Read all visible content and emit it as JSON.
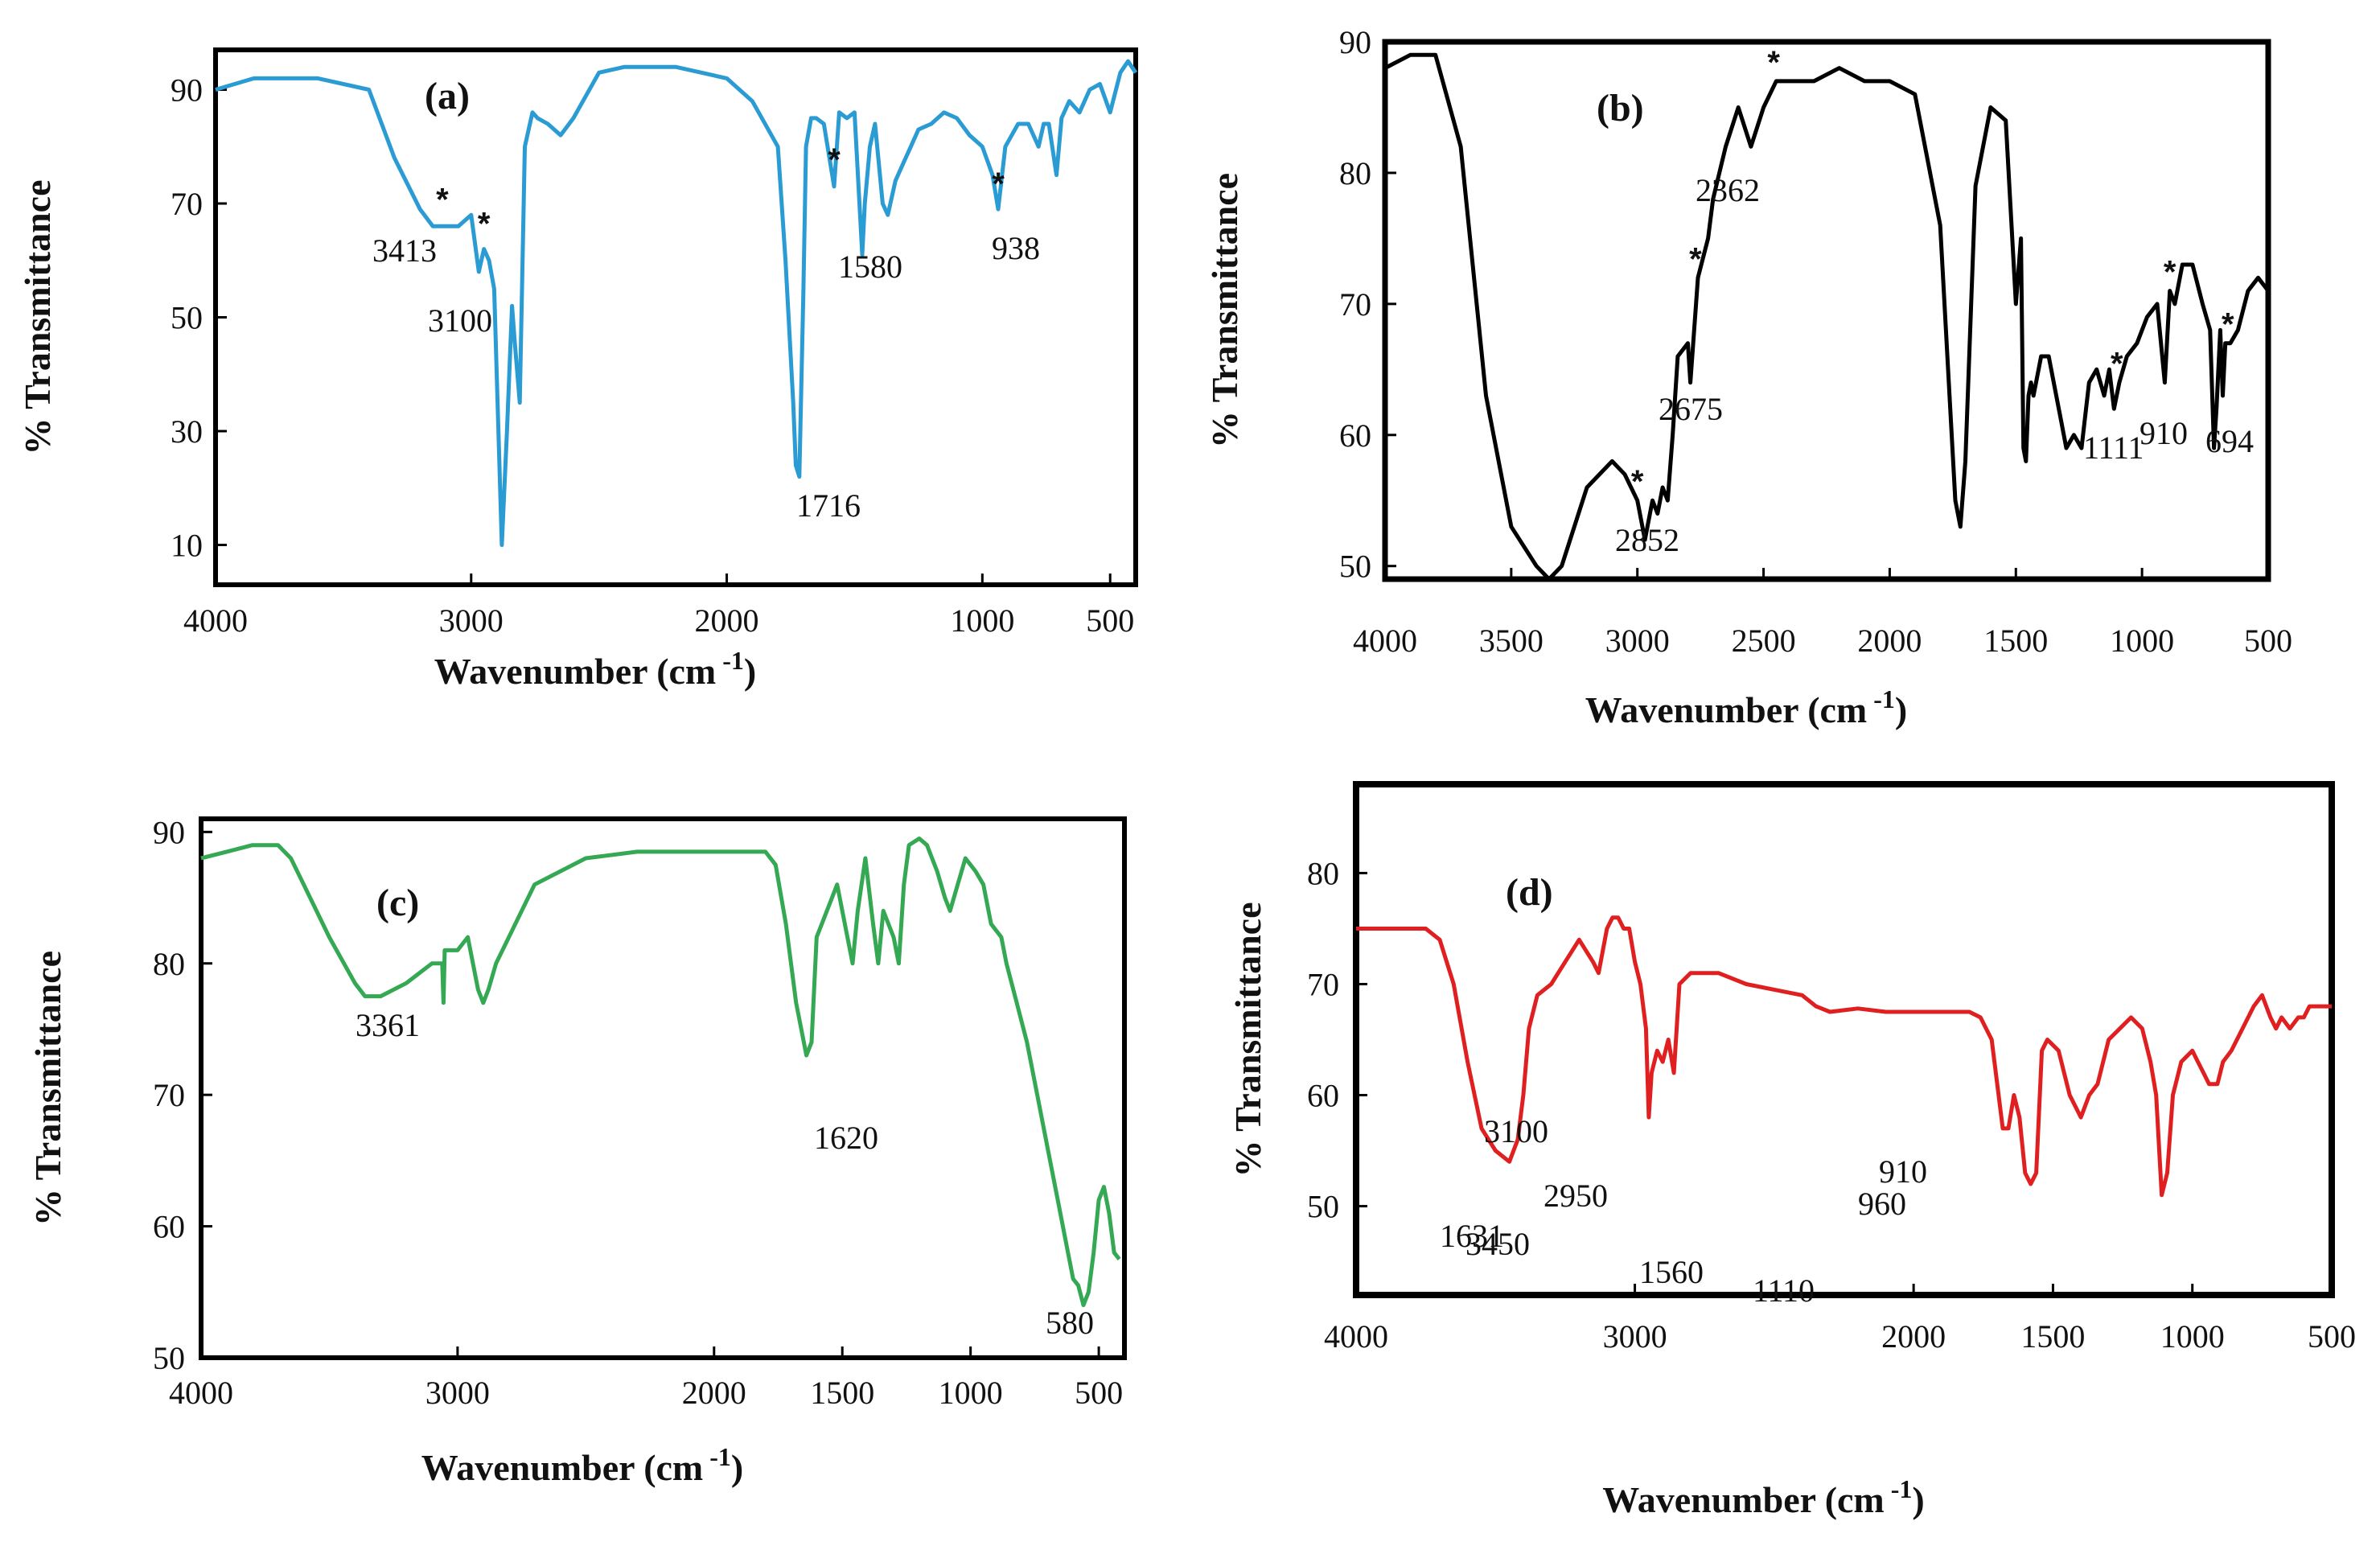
{
  "chart_data": [
    {
      "panel": "(a)",
      "type": "line",
      "color": "#2b9bd4",
      "xlabel": "Wavenumber (cm",
      "xlabel_sup": "-1",
      "xlabel_close": ")",
      "ylabel": "% Transmittance",
      "xlim": [
        4000,
        400
      ],
      "ylim": [
        3,
        97
      ],
      "xticks": [
        4000,
        3000,
        2000,
        1000,
        500
      ],
      "yticks": [
        10,
        30,
        50,
        70,
        90
      ],
      "annotations": [
        "3413",
        "3100",
        "1716",
        "1580",
        "938"
      ],
      "stars": [
        3113,
        2950,
        1580,
        938
      ],
      "series": [
        {
          "x": [
            4000,
            3850,
            3600,
            3400,
            3300,
            3200,
            3150,
            3050,
            3000,
            2970,
            2950,
            2930,
            2910,
            2880,
            2860,
            2840,
            2830,
            2810,
            2790,
            2760,
            2740,
            2700,
            2650,
            2600,
            2500,
            2400,
            2200,
            2000,
            1900,
            1800,
            1770,
            1740,
            1730,
            1716,
            1700,
            1690,
            1670,
            1650,
            1620,
            1580,
            1560,
            1530,
            1500,
            1470,
            1460,
            1440,
            1420,
            1390,
            1370,
            1340,
            1300,
            1280,
            1250,
            1200,
            1150,
            1100,
            1050,
            1000,
            960,
            938,
            910,
            860,
            820,
            780,
            760,
            740,
            710,
            690,
            660,
            620,
            580,
            540,
            500,
            460,
            430,
            400
          ],
          "y": [
            90,
            92,
            92,
            90,
            78,
            69,
            66,
            66,
            68,
            58,
            62,
            60,
            55,
            10,
            30,
            52,
            46,
            35,
            80,
            86,
            85,
            84,
            82,
            85,
            93,
            94,
            94,
            92,
            88,
            80,
            60,
            35,
            24,
            22,
            55,
            80,
            85,
            85,
            84,
            73,
            86,
            85,
            86,
            61,
            70,
            80,
            84,
            70,
            68,
            74,
            78,
            80,
            83,
            84,
            86,
            85,
            82,
            80,
            75,
            69,
            80,
            84,
            84,
            80,
            84,
            84,
            75,
            85,
            88,
            86,
            90,
            91,
            86,
            93,
            95,
            93
          ]
        }
      ]
    },
    {
      "panel": "(b)",
      "type": "line",
      "color": "#000000",
      "xlabel": "Wavenumber (cm",
      "xlabel_sup": "-1",
      "xlabel_close": ")",
      "ylabel": "% Transmittance",
      "xlim": [
        4000,
        500
      ],
      "ylim": [
        49,
        90
      ],
      "xticks": [
        4000,
        3500,
        3000,
        2500,
        2000,
        1500,
        1000,
        500
      ],
      "yticks": [
        50,
        60,
        70,
        80,
        90
      ],
      "annotations": [
        "2362",
        "2675",
        "2852",
        "1111",
        "910",
        "694"
      ],
      "stars": [
        3000,
        2770,
        2460,
        1100,
        890,
        660
      ],
      "series": [
        {
          "x": [
            4000,
            3900,
            3800,
            3700,
            3600,
            3500,
            3400,
            3350,
            3300,
            3200,
            3100,
            3050,
            3000,
            2970,
            2940,
            2920,
            2900,
            2880,
            2860,
            2840,
            2800,
            2790,
            2760,
            2720,
            2700,
            2650,
            2600,
            2550,
            2500,
            2450,
            2400,
            2350,
            2300,
            2200,
            2100,
            2000,
            1900,
            1800,
            1760,
            1740,
            1720,
            1700,
            1660,
            1600,
            1540,
            1500,
            1480,
            1470,
            1460,
            1450,
            1440,
            1430,
            1400,
            1370,
            1340,
            1320,
            1300,
            1270,
            1240,
            1210,
            1180,
            1150,
            1130,
            1111,
            1090,
            1060,
            1020,
            980,
            940,
            910,
            890,
            870,
            840,
            800,
            760,
            730,
            715,
            705,
            690,
            680,
            670,
            650,
            620,
            580,
            540,
            500
          ],
          "y": [
            88,
            89,
            89,
            82,
            63,
            53,
            50,
            49,
            50,
            56,
            58,
            57,
            55,
            52,
            55,
            54,
            56,
            55,
            60,
            66,
            67,
            64,
            72,
            75,
            78,
            82,
            85,
            82,
            85,
            87,
            87,
            87,
            87,
            88,
            87,
            87,
            86,
            76,
            62,
            55,
            53,
            58,
            79,
            85,
            84,
            70,
            75,
            59,
            58,
            63,
            64,
            63,
            66,
            66,
            63,
            61,
            59,
            60,
            59,
            64,
            65,
            63,
            65,
            62,
            64,
            66,
            67,
            69,
            70,
            64,
            71,
            70,
            73,
            73,
            70,
            68,
            59,
            62,
            68,
            63,
            67,
            67,
            68,
            71,
            72,
            71
          ]
        }
      ]
    },
    {
      "panel": "(c)",
      "type": "line",
      "color": "#34a853",
      "xlabel": "Wavenumber (cm",
      "xlabel_sup": "-1",
      "xlabel_close": ")",
      "ylabel": "% Transmittance",
      "xlim": [
        4000,
        400
      ],
      "ylim": [
        50,
        91
      ],
      "xticks": [
        4000,
        3000,
        2000,
        1500,
        1000,
        500
      ],
      "yticks": [
        50,
        60,
        70,
        80,
        90
      ],
      "annotations": [
        "3361",
        "1620",
        "580"
      ],
      "series": [
        {
          "x": [
            4000,
            3900,
            3800,
            3700,
            3650,
            3600,
            3500,
            3400,
            3361,
            3300,
            3200,
            3100,
            3060,
            3055,
            3050,
            3000,
            2960,
            2920,
            2900,
            2880,
            2850,
            2700,
            2500,
            2300,
            2100,
            1900,
            1800,
            1760,
            1720,
            1680,
            1640,
            1620,
            1600,
            1560,
            1520,
            1480,
            1460,
            1440,
            1410,
            1380,
            1360,
            1340,
            1300,
            1280,
            1260,
            1240,
            1200,
            1170,
            1150,
            1130,
            1100,
            1080,
            1050,
            1020,
            980,
            950,
            920,
            880,
            860,
            820,
            780,
            740,
            700,
            660,
            620,
            600,
            580,
            560,
            540,
            520,
            500,
            480,
            460,
            440,
            420
          ],
          "y": [
            88,
            88.5,
            89,
            89,
            88,
            86,
            82,
            78.5,
            77.5,
            77.5,
            78.5,
            80,
            80,
            77,
            81,
            81,
            82,
            78,
            77,
            78,
            80,
            86,
            88,
            88.5,
            88.5,
            88.5,
            88.5,
            87.5,
            83,
            77,
            73,
            74,
            82,
            84,
            86,
            82,
            80,
            84,
            88,
            83,
            80,
            84,
            82,
            80,
            86,
            89,
            89.5,
            89,
            88,
            87,
            85,
            84,
            86,
            88,
            87,
            86,
            83,
            82,
            80,
            77,
            74,
            70,
            66,
            62,
            58,
            56,
            55.5,
            54,
            55,
            58,
            62,
            63,
            61,
            58,
            57.5
          ]
        }
      ]
    },
    {
      "panel": "(d)",
      "type": "line",
      "color": "#e02020",
      "xlabel": "Wavenumber (cm",
      "xlabel_sup": "-1",
      "xlabel_close": ")",
      "ylabel": "% Transmittance",
      "xlim": [
        4000,
        500
      ],
      "ylim": [
        42,
        88
      ],
      "xticks": [
        4000,
        3000,
        2000,
        1500,
        1000,
        500
      ],
      "yticks": [
        50,
        60,
        70,
        80
      ],
      "annotations": [
        "3450",
        "3100",
        "2950",
        "1631",
        "1560",
        "1110",
        "960",
        "910"
      ],
      "series": [
        {
          "x": [
            4000,
            3900,
            3800,
            3750,
            3700,
            3650,
            3600,
            3550,
            3500,
            3450,
            3420,
            3400,
            3380,
            3350,
            3300,
            3250,
            3200,
            3150,
            3130,
            3100,
            3080,
            3060,
            3040,
            3020,
            3000,
            2980,
            2960,
            2950,
            2940,
            2920,
            2900,
            2880,
            2860,
            2840,
            2800,
            2700,
            2600,
            2500,
            2400,
            2350,
            2300,
            2200,
            2100,
            2000,
            1900,
            1800,
            1760,
            1720,
            1700,
            1680,
            1660,
            1640,
            1620,
            1600,
            1580,
            1560,
            1540,
            1520,
            1480,
            1440,
            1400,
            1370,
            1340,
            1300,
            1260,
            1220,
            1180,
            1150,
            1130,
            1110,
            1090,
            1070,
            1040,
            1000,
            980,
            960,
            940,
            910,
            890,
            860,
            820,
            780,
            750,
            720,
            700,
            680,
            650,
            620,
            600,
            580,
            540,
            500
          ],
          "y": [
            75,
            75,
            75,
            75,
            74,
            70,
            63,
            57,
            55,
            54,
            56,
            60,
            66,
            69,
            70,
            72,
            74,
            72,
            71,
            75,
            76,
            76,
            75,
            75,
            72,
            70,
            66,
            58,
            62,
            64,
            63,
            65,
            62,
            70,
            71,
            71,
            70,
            69.5,
            69,
            68,
            67.5,
            67.8,
            67.5,
            67.5,
            67.5,
            67.5,
            67,
            65,
            61,
            57,
            57,
            60,
            58,
            53,
            52,
            53,
            64,
            65,
            64,
            60,
            58,
            60,
            61,
            65,
            66,
            67,
            66,
            63,
            60,
            51,
            53,
            60,
            63,
            64,
            63,
            62,
            61,
            61,
            63,
            64,
            66,
            68,
            69,
            67,
            66,
            67,
            66,
            67,
            67,
            68,
            68,
            68
          ]
        }
      ]
    }
  ]
}
